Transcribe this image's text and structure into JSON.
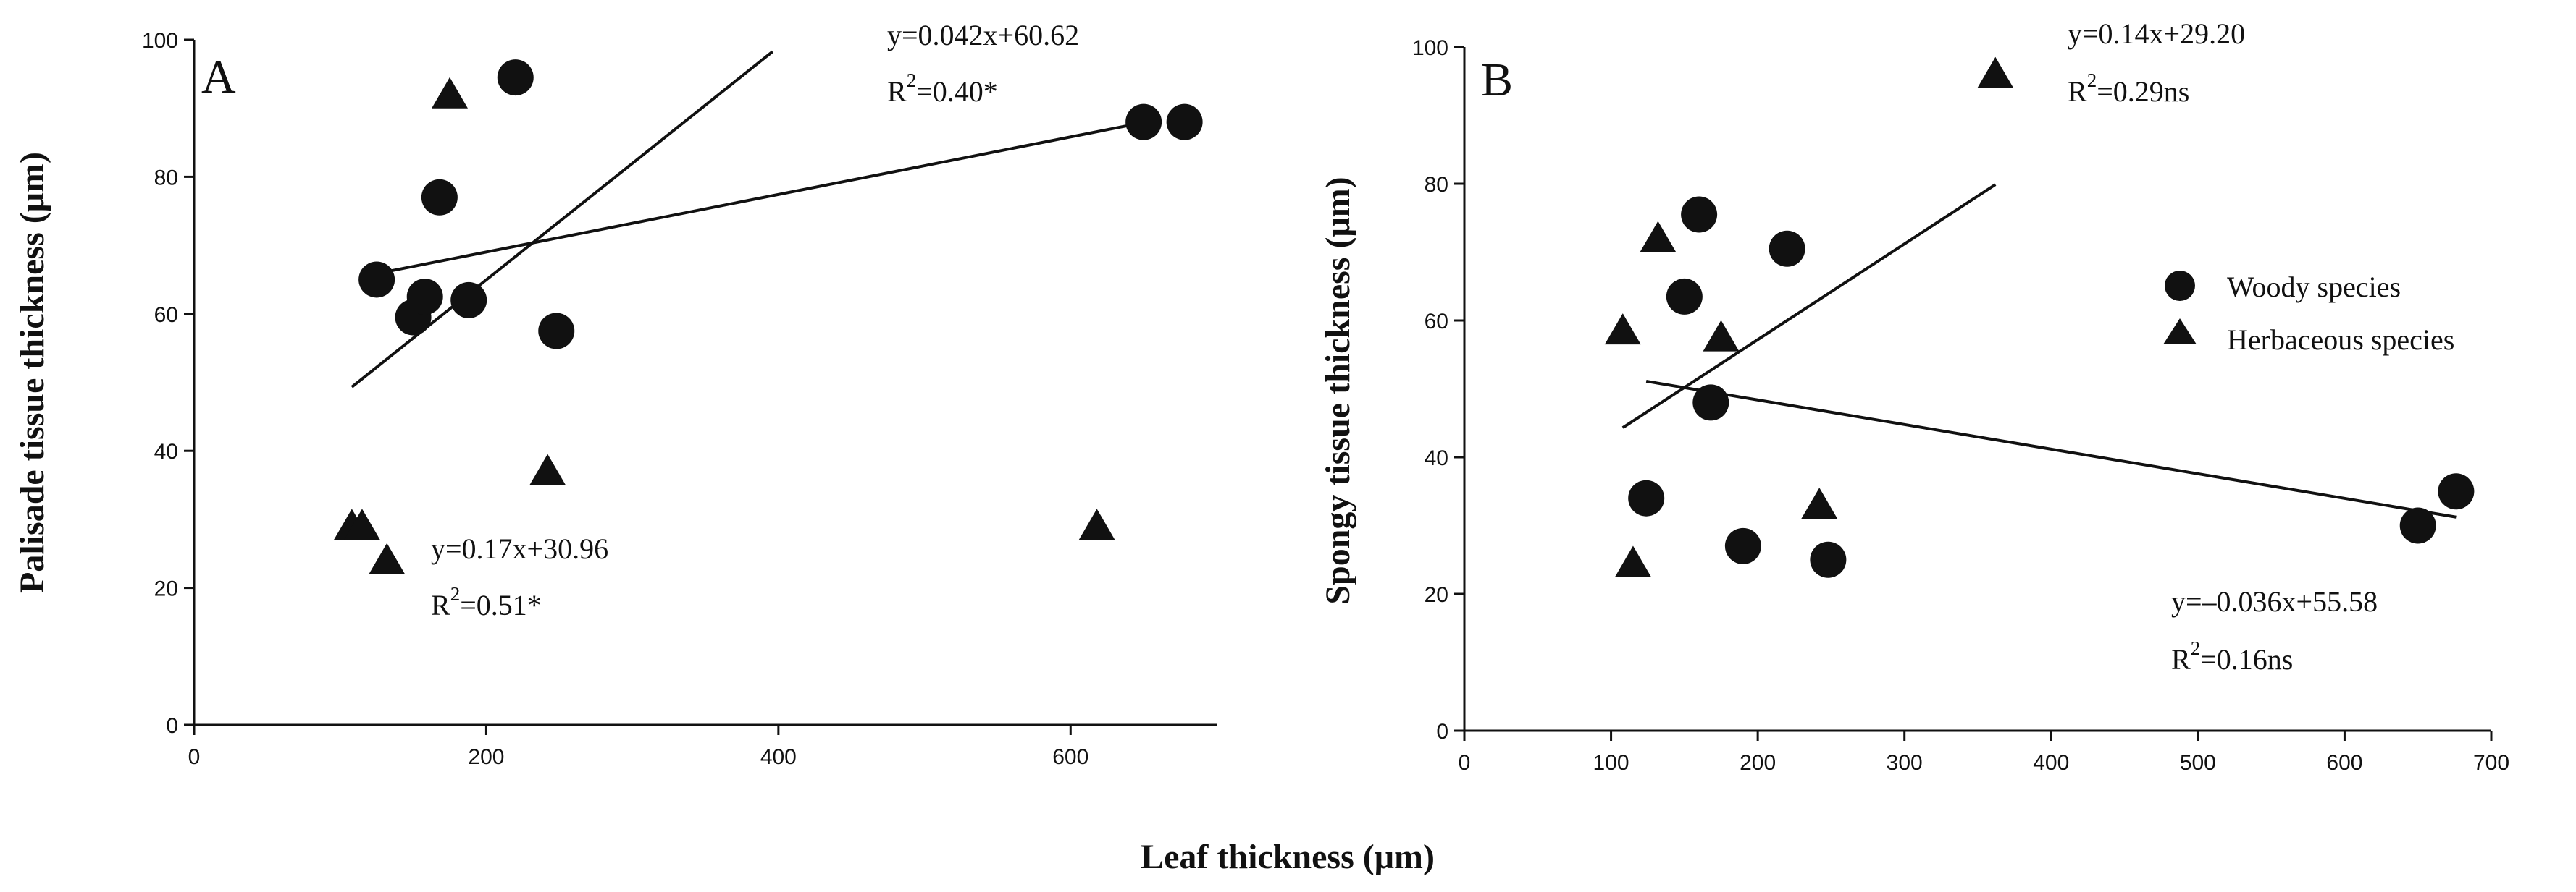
{
  "figure": {
    "shared_xlabel": "Leaf thickness (μm)",
    "legend": {
      "woody": "Woody species",
      "herb": "Herbaceous species",
      "placement": "right-middle of panel B"
    }
  },
  "colors": {
    "ink": "#111111",
    "background": "#ffffff"
  },
  "chart_data": [
    {
      "type": "scatter",
      "panel": "A",
      "xlabel": "",
      "ylabel": "Palisade tissue thickness (μm)",
      "xlim": [
        0,
        700
      ],
      "ylim": [
        0,
        100
      ],
      "xticks": [
        0,
        200,
        400,
        600
      ],
      "yticks": [
        0,
        20,
        40,
        60,
        80,
        100
      ],
      "series": [
        {
          "name": "Woody species",
          "marker": "circle",
          "points": [
            [
              125,
              65
            ],
            [
              150,
              59.5
            ],
            [
              158,
              62.5
            ],
            [
              168,
              77
            ],
            [
              188,
              62
            ],
            [
              220,
              94.5
            ],
            [
              248,
              57.5
            ],
            [
              650,
              88
            ],
            [
              678,
              88
            ]
          ]
        },
        {
          "name": "Herbaceous species",
          "marker": "triangle",
          "points": [
            [
              108,
              29
            ],
            [
              115,
              29
            ],
            [
              132,
              24
            ],
            [
              175,
              92
            ],
            [
              242,
              37
            ],
            [
              618,
              29
            ]
          ]
        }
      ],
      "fits": [
        {
          "series": "Woody species",
          "equation": "y=0.042x+60.62",
          "r2_prefix": "R",
          "r2_sup": "2",
          "r2_value": "=0.40*",
          "x_range": [
            125,
            650
          ],
          "slope": 0.042,
          "intercept": 60.62
        },
        {
          "series": "Herbaceous species",
          "equation": "y=0.17x+30.96",
          "r2_prefix": "R",
          "r2_sup": "2",
          "r2_value": "=0.51*",
          "x_range": [
            108,
            396
          ],
          "slope": 0.17,
          "intercept": 30.96
        }
      ]
    },
    {
      "type": "scatter",
      "panel": "B",
      "xlabel": "",
      "ylabel": "Spongy tissue thickness (μm)",
      "xlim": [
        0,
        700
      ],
      "ylim": [
        0,
        100
      ],
      "xticks": [
        0,
        100,
        200,
        300,
        400,
        500,
        600,
        700
      ],
      "yticks": [
        0,
        20,
        40,
        60,
        80,
        100
      ],
      "series": [
        {
          "name": "Woody species",
          "marker": "circle",
          "points": [
            [
              124,
              34
            ],
            [
              150,
              63.5
            ],
            [
              160,
              75.5
            ],
            [
              168,
              48
            ],
            [
              190,
              27
            ],
            [
              220,
              70.5
            ],
            [
              248,
              25
            ],
            [
              650,
              30
            ],
            [
              676,
              35
            ]
          ]
        },
        {
          "name": "Herbaceous species",
          "marker": "triangle",
          "points": [
            [
              108,
              58.5
            ],
            [
              115,
              24.5
            ],
            [
              132,
              72
            ],
            [
              175,
              57.5
            ],
            [
              242,
              33
            ],
            [
              362,
              96
            ]
          ]
        }
      ],
      "fits": [
        {
          "series": "Woody species",
          "equation": "y=–0.036x+55.58",
          "r2_prefix": "R",
          "r2_sup": "2",
          "r2_value": "=0.16ns",
          "x_range": [
            124,
            676
          ],
          "slope": -0.036,
          "intercept": 55.58
        },
        {
          "series": "Herbaceous species",
          "equation": "y=0.14x+29.20",
          "r2_prefix": "R",
          "r2_sup": "2",
          "r2_value": "=0.29ns",
          "x_range": [
            108,
            362
          ],
          "slope": 0.14,
          "intercept": 29.2
        }
      ]
    }
  ]
}
